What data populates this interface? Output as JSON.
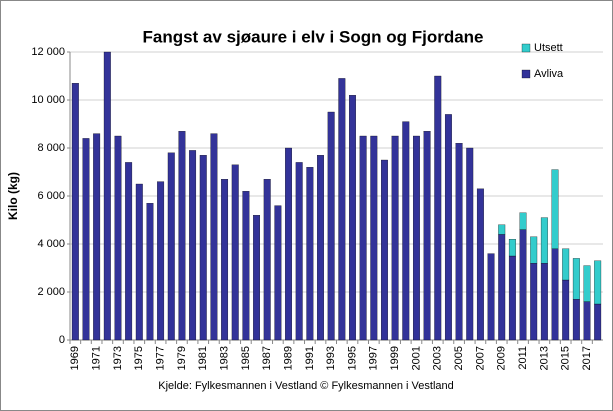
{
  "chart_data": {
    "type": "stacked-bar",
    "title": "Fangst  av sjøaure  i elv i Sogn og Fjordane",
    "y_label": "Kilo (kg)",
    "footer": "Kjelde: Fylkesmannen i Vestland © Fylkesmannen i Vestland",
    "categories": [
      "1969",
      null,
      "1971",
      null,
      "1973",
      null,
      "1975",
      null,
      "1977",
      null,
      "1979",
      null,
      "1981",
      null,
      "1983",
      null,
      "1985",
      null,
      "1987",
      null,
      "1989",
      null,
      "1991",
      null,
      "1993",
      null,
      "1995",
      null,
      "1997",
      null,
      "1999",
      null,
      "2001",
      null,
      "2003",
      null,
      "2005",
      null,
      "2007",
      null,
      "2009",
      null,
      "2011",
      null,
      "2013",
      null,
      "2015",
      null,
      "2017",
      null
    ],
    "series": [
      {
        "name": "Avliva",
        "color": "#333399",
        "values": [
          10700,
          8400,
          8600,
          12000,
          8500,
          7400,
          6500,
          5700,
          6600,
          7800,
          8700,
          7900,
          7700,
          8600,
          6700,
          7300,
          6200,
          5200,
          6700,
          5600,
          8000,
          7400,
          7200,
          7700,
          9500,
          10900,
          10200,
          8500,
          8500,
          7500,
          8500,
          9100,
          8500,
          8700,
          11000,
          9400,
          8200,
          8000,
          6300,
          3600,
          4400,
          3500,
          4600,
          3200,
          3200,
          3800,
          2500,
          1700,
          1600,
          1500
        ]
      },
      {
        "name": "Utsett",
        "color": "#33cccc",
        "values": [
          null,
          null,
          null,
          null,
          null,
          null,
          null,
          null,
          null,
          null,
          null,
          null,
          null,
          null,
          null,
          null,
          null,
          null,
          null,
          null,
          null,
          null,
          null,
          null,
          null,
          null,
          null,
          null,
          null,
          null,
          null,
          null,
          null,
          null,
          null,
          null,
          null,
          null,
          null,
          null,
          400,
          700,
          700,
          1100,
          1900,
          3300,
          1300,
          1700,
          1500,
          1800
        ]
      }
    ],
    "ylim": [
      0,
      12000
    ],
    "yticks": [
      0,
      {
        "value": 2000,
        "label": "2 000"
      },
      {
        "value": 4000,
        "label": "4 000"
      },
      {
        "value": 6000,
        "label": "6 000"
      },
      {
        "value": 8000,
        "label": "8 000"
      },
      {
        "value": 10000,
        "label": "10 000"
      },
      {
        "value": 12000,
        "label": "12 000"
      }
    ],
    "grid": true,
    "legend": "top-right"
  }
}
